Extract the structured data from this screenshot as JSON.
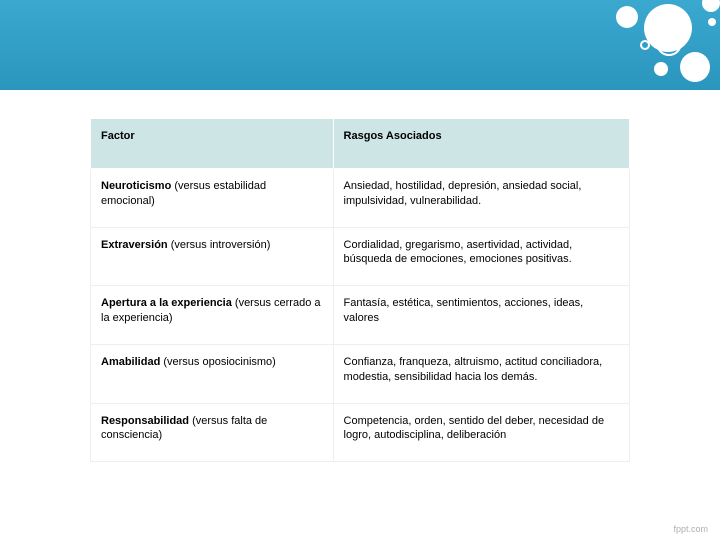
{
  "table": {
    "header_bg": "#cde5e5",
    "columns": [
      "Factor",
      "Rasgos Asociados"
    ],
    "rows": [
      {
        "factor_bold": "Neuroticismo",
        "factor_rest": " (versus estabilidad emocional)",
        "rasgos": "Ansiedad, hostilidad, depresión, ansiedad social, impulsividad, vulnerabilidad."
      },
      {
        "factor_bold": "Extraversión",
        "factor_rest": " (versus introversión)",
        "rasgos": "Cordialidad, gregarismo, asertividad, actividad, búsqueda de emociones, emociones positivas."
      },
      {
        "factor_bold": "Apertura a la experiencia",
        "factor_rest": " (versus cerrado a la experiencia)",
        "rasgos": "Fantasía, estética, sentimientos, acciones, ideas, valores"
      },
      {
        "factor_bold": "Amabilidad",
        "factor_rest": " (versus oposiocinismo)",
        "rasgos": "Confianza, franqueza, altruismo, actitud conciliadora, modestia, sensibilidad hacia los demás."
      },
      {
        "factor_bold": "Responsabilidad",
        "factor_rest": " (versus falta de consciencia)",
        "rasgos": "Competencia, orden, sentido del deber, necesidad de logro, autodisciplina, deliberación"
      }
    ]
  },
  "footer": "fppt.com",
  "colors": {
    "band_top": "#3aa8cf",
    "band_bottom": "#2b96bd",
    "bubble": "#ffffff"
  }
}
